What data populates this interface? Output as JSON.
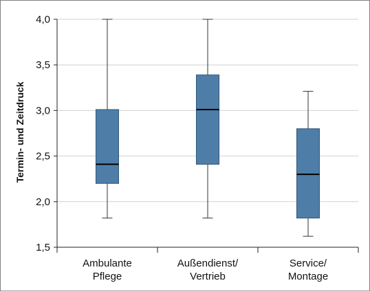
{
  "chart_data": {
    "type": "boxplot",
    "title": "",
    "xlabel": "",
    "ylabel": "Termin- und Zeitdruck",
    "ylim": [
      1.5,
      4.0
    ],
    "yticks": [
      1.5,
      2.0,
      2.5,
      3.0,
      3.5,
      4.0
    ],
    "ytick_labels": [
      "1,5",
      "2,0",
      "2,5",
      "3,0",
      "3,5",
      "4,0"
    ],
    "grid": true,
    "categories": [
      {
        "line1": "Ambulante",
        "line2": "Pflege"
      },
      {
        "line1": "Außendienst/",
        "line2": "Vertrieb"
      },
      {
        "line1": "Service/",
        "line2": "Montage"
      }
    ],
    "boxes": [
      {
        "min": 1.82,
        "q1": 2.2,
        "median": 2.41,
        "q3": 3.01,
        "max": 4.0
      },
      {
        "min": 1.82,
        "q1": 2.41,
        "median": 3.01,
        "q3": 3.39,
        "max": 4.0
      },
      {
        "min": 1.62,
        "q1": 1.82,
        "median": 2.3,
        "q3": 2.8,
        "max": 3.21
      }
    ],
    "colors": {
      "box_fill": "#4e7ea8",
      "box_stroke": "#2f5675",
      "median": "#000000",
      "whisker": "#333333",
      "grid": "#d0d0d0",
      "axis": "#222222"
    }
  }
}
